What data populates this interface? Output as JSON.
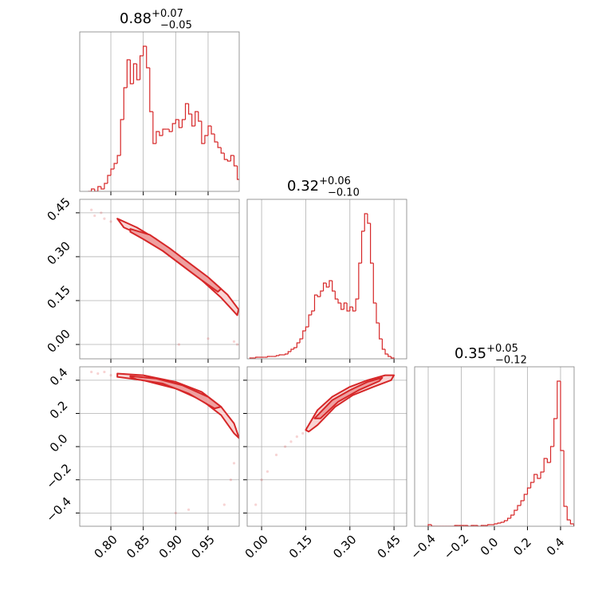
{
  "chart_data": [
    {
      "type": "histogram",
      "title": "0.88",
      "title_sup": "+0.07",
      "title_sub": "−0.05",
      "color": "#d62728",
      "xlim": [
        0.752,
        0.998
      ],
      "ylim": [
        0,
        200
      ],
      "xticks": [
        0.8,
        0.85,
        0.9,
        0.95
      ],
      "grid": true,
      "xtick_labels": false,
      "bins": [
        0.765,
        0.77,
        0.775,
        0.78,
        0.785,
        0.79,
        0.795,
        0.8,
        0.805,
        0.81,
        0.815,
        0.82,
        0.825,
        0.83,
        0.835,
        0.84,
        0.845,
        0.85,
        0.855,
        0.86,
        0.865,
        0.87,
        0.875,
        0.88,
        0.885,
        0.89,
        0.895,
        0.9,
        0.905,
        0.91,
        0.915,
        0.92,
        0.925,
        0.93,
        0.935,
        0.94,
        0.945,
        0.95,
        0.955,
        0.96,
        0.965,
        0.97,
        0.975,
        0.98,
        0.985,
        0.99,
        0.995,
        1.0
      ],
      "counts": [
        0,
        3,
        0,
        6,
        3,
        10,
        20,
        28,
        35,
        45,
        90,
        130,
        165,
        135,
        160,
        140,
        170,
        182,
        155,
        100,
        60,
        75,
        70,
        78,
        78,
        75,
        85,
        90,
        80,
        90,
        110,
        97,
        82,
        100,
        88,
        60,
        70,
        82,
        72,
        62,
        55,
        48,
        40,
        38,
        45,
        32,
        15
      ]
    },
    {
      "type": "contour",
      "color": "#d62728",
      "fill": "#f8d4d4",
      "inner_fill": "#eea0a0",
      "xlim": [
        0.752,
        0.998
      ],
      "ylim": [
        -0.049,
        0.496
      ],
      "xticks": [
        0.8,
        0.85,
        0.9,
        0.95
      ],
      "yticks": [
        {
          "value": 0.45,
          "label": "0.45"
        },
        {
          "value": 0.3,
          "label": "0.30"
        },
        {
          "value": 0.15,
          "label": "0.15"
        },
        {
          "value": 0,
          "label": "0.00"
        }
      ],
      "grid": true,
      "xtick_labels": false,
      "ytick_labels": true,
      "contours": [
        {
          "x": [
            0.81,
            0.84,
            0.87,
            0.9,
            0.93,
            0.96,
            0.98,
            0.997,
            0.995,
            0.97,
            0.94,
            0.91,
            0.88,
            0.85,
            0.82,
            0.81
          ],
          "y": [
            0.43,
            0.4,
            0.36,
            0.31,
            0.26,
            0.21,
            0.17,
            0.12,
            0.1,
            0.16,
            0.22,
            0.27,
            0.32,
            0.37,
            0.4,
            0.43
          ]
        },
        {
          "x": [
            0.83,
            0.86,
            0.89,
            0.92,
            0.95,
            0.97,
            0.965,
            0.94,
            0.91,
            0.88,
            0.85,
            0.83
          ],
          "y": [
            0.395,
            0.375,
            0.33,
            0.28,
            0.23,
            0.19,
            0.18,
            0.22,
            0.27,
            0.32,
            0.36,
            0.385
          ]
        }
      ],
      "points": {
        "x": [
          0.77,
          0.775,
          0.785,
          0.79,
          0.8,
          0.95,
          0.99,
          0.995,
          0.905
        ],
        "y": [
          0.46,
          0.44,
          0.45,
          0.43,
          0.42,
          0.02,
          0.01,
          0.0,
          0.0
        ]
      }
    },
    {
      "type": "histogram",
      "title": "0.32",
      "title_sup": "+0.06",
      "title_sub": "−0.10",
      "color": "#d62728",
      "xlim": [
        -0.049,
        0.493
      ],
      "ylim": [
        0,
        200
      ],
      "xticks": [
        0,
        0.15,
        0.3,
        0.45
      ],
      "grid": true,
      "xtick_labels": false,
      "bins": [
        -0.04,
        -0.03,
        -0.02,
        -0.01,
        0.0,
        0.01,
        0.02,
        0.03,
        0.04,
        0.05,
        0.06,
        0.07,
        0.08,
        0.09,
        0.1,
        0.11,
        0.12,
        0.13,
        0.14,
        0.15,
        0.16,
        0.17,
        0.18,
        0.19,
        0.2,
        0.21,
        0.22,
        0.23,
        0.24,
        0.25,
        0.26,
        0.27,
        0.28,
        0.29,
        0.3,
        0.31,
        0.32,
        0.33,
        0.34,
        0.35,
        0.36,
        0.37,
        0.38,
        0.39,
        0.4,
        0.41,
        0.42,
        0.43,
        0.44,
        0.45
      ],
      "counts": [
        1,
        1,
        2,
        2,
        2,
        2,
        3,
        3,
        3,
        4,
        5,
        5,
        6,
        9,
        12,
        14,
        20,
        25,
        35,
        40,
        55,
        60,
        80,
        78,
        85,
        95,
        90,
        98,
        85,
        75,
        70,
        62,
        70,
        60,
        65,
        60,
        75,
        120,
        160,
        182,
        170,
        120,
        70,
        45,
        25,
        12,
        6,
        3,
        1
      ]
    },
    {
      "type": "contour",
      "color": "#d62728",
      "fill": "#f8d4d4",
      "inner_fill": "#eea0a0",
      "xlim": [
        0.752,
        0.998
      ],
      "ylim": [
        -0.48,
        0.481
      ],
      "xticks": [
        {
          "value": 0.8,
          "label": "0.80"
        },
        {
          "value": 0.85,
          "label": "0.85"
        },
        {
          "value": 0.9,
          "label": "0.90"
        },
        {
          "value": 0.95,
          "label": "0.95"
        }
      ],
      "yticks": [
        0.4,
        0.2,
        {
          "value": 0,
          "label": "0.0"
        },
        {
          "value": -0.2,
          "label": "−0.2"
        },
        {
          "value": -0.4,
          "label": "−0.4"
        }
      ],
      "grid": true,
      "xtick_labels": true,
      "ytick_labels": true,
      "contours": [
        {
          "x": [
            0.81,
            0.85,
            0.9,
            0.94,
            0.97,
            0.99,
            0.998,
            0.99,
            0.97,
            0.94,
            0.9,
            0.85,
            0.81
          ],
          "y": [
            0.44,
            0.43,
            0.39,
            0.33,
            0.24,
            0.14,
            0.05,
            0.08,
            0.19,
            0.28,
            0.35,
            0.4,
            0.42
          ]
        },
        {
          "x": [
            0.83,
            0.87,
            0.91,
            0.95,
            0.97,
            0.96,
            0.92,
            0.88,
            0.84,
            0.83
          ],
          "y": [
            0.425,
            0.41,
            0.37,
            0.3,
            0.24,
            0.23,
            0.32,
            0.38,
            0.405,
            0.42
          ]
        }
      ],
      "points": {
        "x": [
          0.77,
          0.78,
          0.79,
          0.8,
          0.99,
          0.985,
          0.975,
          0.92,
          0.9
        ],
        "y": [
          0.45,
          0.44,
          0.45,
          0.43,
          -0.1,
          -0.2,
          -0.35,
          -0.38,
          -0.4
        ]
      }
    },
    {
      "type": "contour",
      "color": "#d62728",
      "fill": "#f8d4d4",
      "inner_fill": "#eea0a0",
      "xlim": [
        -0.049,
        0.493
      ],
      "ylim": [
        -0.48,
        0.481
      ],
      "xticks": [
        {
          "value": 0,
          "label": "0.00"
        },
        0.15,
        {
          "value": 0.3,
          "label": "0.30"
        },
        0.45
      ],
      "yticks": [
        0.4,
        0.2,
        0,
        -0.2,
        -0.4
      ],
      "grid": true,
      "xtick_labels": true,
      "ytick_labels": false,
      "contours": [
        {
          "x": [
            0.15,
            0.19,
            0.24,
            0.3,
            0.36,
            0.42,
            0.45,
            0.44,
            0.38,
            0.31,
            0.25,
            0.19,
            0.16,
            0.15
          ],
          "y": [
            0.1,
            0.22,
            0.3,
            0.36,
            0.4,
            0.43,
            0.43,
            0.4,
            0.36,
            0.31,
            0.24,
            0.13,
            0.09,
            0.1
          ]
        },
        {
          "x": [
            0.18,
            0.24,
            0.3,
            0.36,
            0.41,
            0.4,
            0.33,
            0.26,
            0.2,
            0.18
          ],
          "y": [
            0.17,
            0.28,
            0.34,
            0.39,
            0.415,
            0.395,
            0.34,
            0.27,
            0.17,
            0.17
          ]
        }
      ],
      "points": {
        "x": [
          0.0,
          0.02,
          0.05,
          0.08,
          0.1,
          0.12,
          0.14,
          -0.02
        ],
        "y": [
          -0.2,
          -0.15,
          -0.05,
          0.0,
          0.03,
          0.06,
          0.08,
          -0.35
        ]
      }
    },
    {
      "type": "histogram",
      "title": "0.35",
      "title_sup": "+0.05",
      "title_sub": "−0.12",
      "color": "#d62728",
      "xlim": [
        -0.482,
        0.482
      ],
      "ylim": [
        0,
        200
      ],
      "xticks": [
        {
          "value": -0.4,
          "label": "−0.4"
        },
        {
          "value": -0.2,
          "label": "−0.2"
        },
        {
          "value": 0,
          "label": "0.0"
        },
        0.2,
        0.4
      ],
      "grid": true,
      "xtick_labels": true,
      "bins": [
        -0.4,
        -0.38,
        -0.36,
        -0.34,
        -0.32,
        -0.3,
        -0.28,
        -0.26,
        -0.24,
        -0.22,
        -0.2,
        -0.18,
        -0.16,
        -0.14,
        -0.12,
        -0.1,
        -0.08,
        -0.06,
        -0.04,
        -0.02,
        0.0,
        0.02,
        0.04,
        0.06,
        0.08,
        0.1,
        0.12,
        0.14,
        0.16,
        0.18,
        0.2,
        0.22,
        0.24,
        0.26,
        0.28,
        0.3,
        0.32,
        0.34,
        0.36,
        0.38,
        0.4,
        0.42,
        0.44,
        0.46,
        0.48
      ],
      "counts": [
        2,
        0,
        0,
        0,
        0,
        0,
        0,
        0,
        1,
        1,
        1,
        1,
        0,
        1,
        1,
        0,
        1,
        1,
        2,
        2,
        3,
        4,
        5,
        7,
        10,
        14,
        20,
        26,
        32,
        40,
        48,
        55,
        65,
        60,
        68,
        85,
        80,
        100,
        135,
        182,
        95,
        25,
        8,
        3
      ]
    }
  ]
}
